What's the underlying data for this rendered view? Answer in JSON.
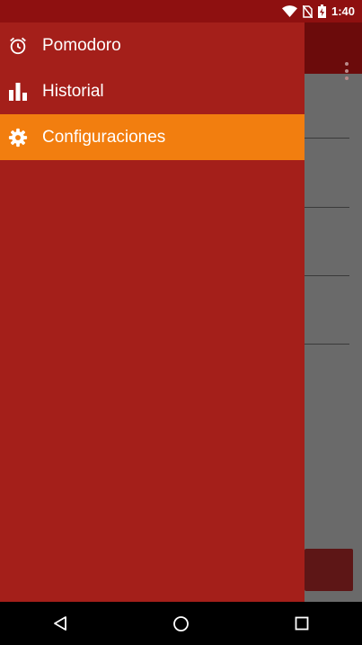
{
  "status_bar": {
    "time": "1:40",
    "icons": [
      "wifi-icon",
      "no-sim-icon",
      "battery-charging-icon"
    ]
  },
  "drawer": {
    "items": [
      {
        "label": "Pomodoro",
        "icon": "alarm-clock-icon",
        "active": false
      },
      {
        "label": "Historial",
        "icon": "bar-chart-icon",
        "active": false
      },
      {
        "label": "Configuraciones",
        "icon": "gear-icon",
        "active": true
      }
    ]
  },
  "nav_bar": {
    "buttons": [
      "back-icon",
      "home-icon",
      "recents-icon"
    ]
  },
  "colors": {
    "drawer_bg": "#a41f1a",
    "active_item": "#f27e0f",
    "status_bar": "#8e1010"
  }
}
